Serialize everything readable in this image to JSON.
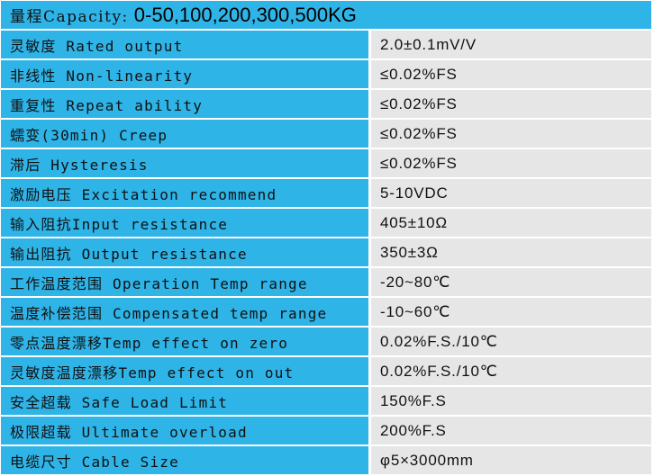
{
  "colors": {
    "label_bg": "#2fb4e8",
    "value_bg": "#e6e6e6"
  },
  "header": {
    "label": "量程Capacity:",
    "value": "0-50,100,200,300,500KG"
  },
  "rows": [
    {
      "label": "灵敏度 Rated output",
      "value": "2.0±0.1mV/V"
    },
    {
      "label": "非线性 Non-linearity",
      "value": "≤0.02%FS"
    },
    {
      "label": "重复性 Repeat ability",
      "value": "≤0.02%FS"
    },
    {
      "label": "蠕变(30min) Creep",
      "value": "≤0.02%FS"
    },
    {
      "label": "滞后 Hysteresis",
      "value": "≤0.02%FS"
    },
    {
      "label": "激励电压 Excitation recommend",
      "value": "5-10VDC"
    },
    {
      "label": "输入阻抗Input resistance",
      "value": "405±10Ω"
    },
    {
      "label": "输出阻抗 Output resistance",
      "value": "350±3Ω"
    },
    {
      "label": "工作温度范围 Operation Temp range",
      "value": "-20~80℃"
    },
    {
      "label": "温度补偿范围 Compensated temp range",
      "value": "-10~60℃"
    },
    {
      "label": "零点温度漂移Temp effect on zero",
      "value": "0.02%F.S./10℃"
    },
    {
      "label": "灵敏度温度漂移Temp effect on out",
      "value": "0.02%F.S./10℃"
    },
    {
      "label": "安全超载 Safe Load Limit",
      "value": "150%F.S"
    },
    {
      "label": "极限超载 Ultimate overload",
      "value": "200%F.S"
    },
    {
      "label": "电缆尺寸 Cable Size",
      "value": "φ5×3000mm"
    }
  ]
}
